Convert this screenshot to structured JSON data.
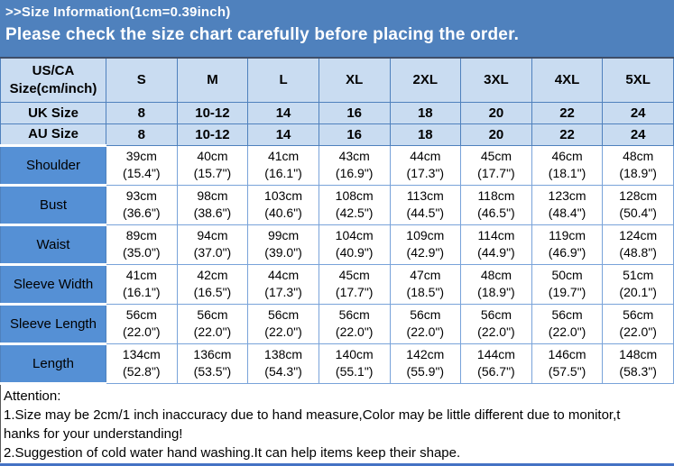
{
  "banner": {
    "line1": ">>Size Information(1cm=0.39inch)",
    "line2": "Please check the size chart carefully before placing the order."
  },
  "colors": {
    "banner_blue": "#4F81BD",
    "header_cell_fill": "#C9DCF1",
    "label_cell_fill": "#5590D5",
    "data_cell_border": "#79A3D9",
    "bottom_border_blue": "#4472C4"
  },
  "table": {
    "corner": {
      "line1": "US/CA",
      "line2": "Size(cm/inch)"
    },
    "size_columns": [
      "S",
      "M",
      "L",
      "XL",
      "2XL",
      "3XL",
      "4XL",
      "5XL"
    ],
    "uk_row": {
      "label": "UK Size",
      "values": [
        "8",
        "10-12",
        "14",
        "16",
        "18",
        "20",
        "22",
        "24"
      ]
    },
    "au_row": {
      "label": "AU Size",
      "values": [
        "8",
        "10-12",
        "14",
        "16",
        "18",
        "20",
        "22",
        "24"
      ]
    },
    "measurements": [
      {
        "label": "Shoulder",
        "cells": [
          [
            "39cm",
            "(15.4\")"
          ],
          [
            "40cm",
            "(15.7\")"
          ],
          [
            "41cm",
            "(16.1\")"
          ],
          [
            "43cm",
            "(16.9\")"
          ],
          [
            "44cm",
            "(17.3\")"
          ],
          [
            "45cm",
            "(17.7\")"
          ],
          [
            "46cm",
            "(18.1\")"
          ],
          [
            "48cm",
            "(18.9\")"
          ]
        ]
      },
      {
        "label": "Bust",
        "cells": [
          [
            "93cm",
            "(36.6\")"
          ],
          [
            "98cm",
            "(38.6\")"
          ],
          [
            "103cm",
            "(40.6\")"
          ],
          [
            "108cm",
            "(42.5\")"
          ],
          [
            "113cm",
            "(44.5\")"
          ],
          [
            "118cm",
            "(46.5\")"
          ],
          [
            "123cm",
            "(48.4\")"
          ],
          [
            "128cm",
            "(50.4\")"
          ]
        ]
      },
      {
        "label": "Waist",
        "cells": [
          [
            "89cm",
            "(35.0\")"
          ],
          [
            "94cm",
            "(37.0\")"
          ],
          [
            "99cm",
            "(39.0\")"
          ],
          [
            "104cm",
            "(40.9\")"
          ],
          [
            "109cm",
            "(42.9\")"
          ],
          [
            "114cm",
            "(44.9\")"
          ],
          [
            "119cm",
            "(46.9\")"
          ],
          [
            "124cm",
            "(48.8\")"
          ]
        ]
      },
      {
        "label": "Sleeve Width",
        "cells": [
          [
            "41cm",
            "(16.1\")"
          ],
          [
            "42cm",
            "(16.5\")"
          ],
          [
            "44cm",
            "(17.3\")"
          ],
          [
            "45cm",
            "(17.7\")"
          ],
          [
            "47cm",
            "(18.5\")"
          ],
          [
            "48cm",
            "(18.9\")"
          ],
          [
            "50cm",
            "(19.7\")"
          ],
          [
            "51cm",
            "(20.1\")"
          ]
        ]
      },
      {
        "label": "Sleeve Length",
        "cells": [
          [
            "56cm",
            "(22.0\")"
          ],
          [
            "56cm",
            "(22.0\")"
          ],
          [
            "56cm",
            "(22.0\")"
          ],
          [
            "56cm",
            "(22.0\")"
          ],
          [
            "56cm",
            "(22.0\")"
          ],
          [
            "56cm",
            "(22.0\")"
          ],
          [
            "56cm",
            "(22.0\")"
          ],
          [
            "56cm",
            "(22.0\")"
          ]
        ]
      },
      {
        "label": "Length",
        "cells": [
          [
            "134cm",
            "(52.8\")"
          ],
          [
            "136cm",
            "(53.5\")"
          ],
          [
            "138cm",
            "(54.3\")"
          ],
          [
            "140cm",
            "(55.1\")"
          ],
          [
            "142cm",
            "(55.9\")"
          ],
          [
            "144cm",
            "(56.7\")"
          ],
          [
            "146cm",
            "(57.5\")"
          ],
          [
            "148cm",
            "(58.3\")"
          ]
        ]
      }
    ]
  },
  "notes": {
    "lines": [
      "Attention:",
      "1.Size may be 2cm/1 inch inaccuracy due to hand measure,Color may be little different due to monitor,t",
      "hanks for your understanding!",
      "2.Suggestion of cold water hand washing.It can help items keep their shape."
    ]
  }
}
